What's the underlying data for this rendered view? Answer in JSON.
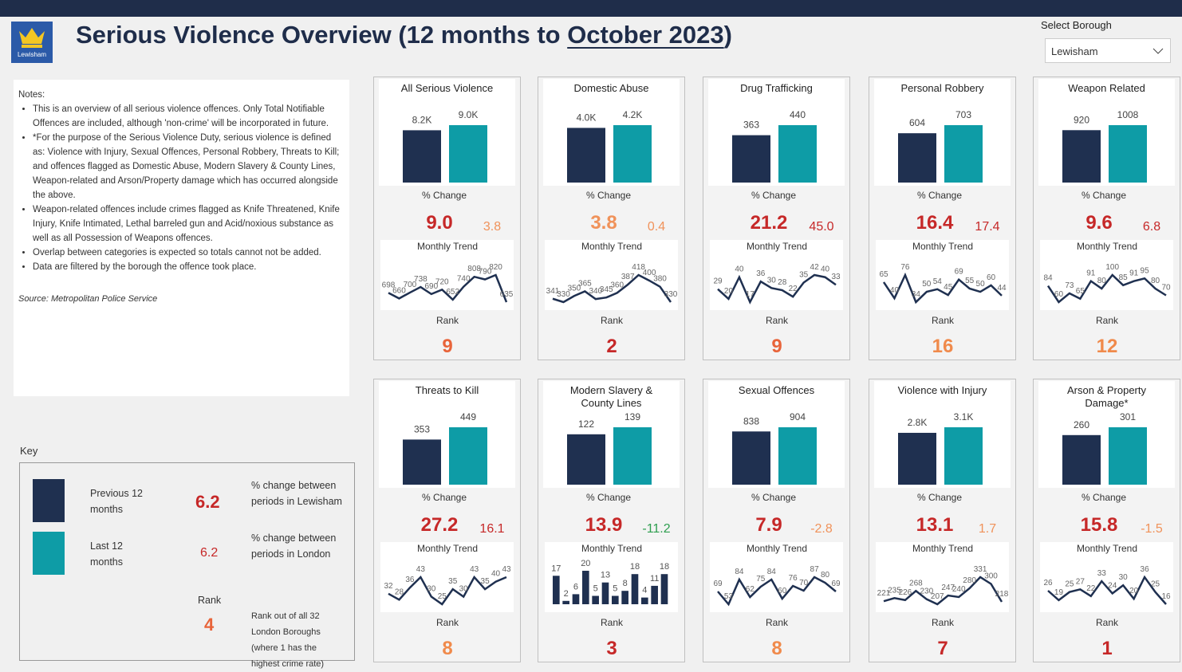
{
  "header": {
    "title_prefix": "Serious Violence Overview (12 months to ",
    "title_month": "October 2023",
    "title_suffix": ")",
    "logo_text": "Lewisham"
  },
  "borough": {
    "label": "Select Borough",
    "value": "Lewisham"
  },
  "notes": {
    "heading": "Notes:",
    "items": [
      "This is an overview of all serious violence offences. Only Total Notifiable Offences are included, although 'non-crime' will be incorporated in future.",
      "*For the purpose of the Serious Violence Duty, serious violence is defined as: Violence with Injury, Sexual Offences, Personal Robbery, Threats to Kill; and offences flagged as Domestic Abuse, Modern Slavery & County Lines, Weapon-related and Arson/Property damage which has occurred alongside the above.",
      "Weapon-related offences include crimes flagged as Knife Threatened, Knife Injury, Knife Intimated, Lethal barreled gun and Acid/noxious substance as well as all Possession of Weapons offences.",
      "Overlap between categories is expected so totals cannot not be added.",
      "Data are filtered by the borough the offence took place."
    ],
    "source": "Source: Metropolitan Police Service"
  },
  "key": {
    "heading": "Key",
    "previous": "Previous 12 months",
    "last": "Last 12 months",
    "previous_color": "#1f3050",
    "last_color": "#0e9ca6",
    "local_value": 6.2,
    "local_text": "% change between periods in Lewisham",
    "london_value": 6.2,
    "london_text": "% change between periods in London",
    "rank_label": "Rank",
    "rank_value": 4,
    "rank_text": "Rank out of all 32 London Boroughs (where 1 has the highest crime rate)"
  },
  "labels": {
    "change": "% Change",
    "trend": "Monthly Trend",
    "rank": "Rank"
  },
  "cards": [
    {
      "title": "All Serious Violence",
      "values": [
        8200,
        9000
      ],
      "value_labels": [
        "8.2K",
        "9.0K"
      ],
      "change": 9.0,
      "change_label": "9.0",
      "london_change": 3.8,
      "change_color": "#c62828",
      "london_color": "#f0925a",
      "trend_type": "line",
      "trend": [
        698,
        660,
        700,
        738,
        690,
        720,
        652,
        740,
        808,
        790,
        820,
        635
      ],
      "rank": 9,
      "rank_color": "#e8643a"
    },
    {
      "title": "Domestic Abuse",
      "values": [
        4000,
        4200
      ],
      "value_labels": [
        "4.0K",
        "4.2K"
      ],
      "change": 3.8,
      "london_change": 0.4,
      "change_color": "#f0925a",
      "london_color": "#f0925a",
      "trend_type": "line",
      "trend": [
        341,
        330,
        350,
        365,
        340,
        345,
        360,
        387,
        418,
        400,
        380,
        330
      ],
      "rank": 2,
      "rank_color": "#c62828"
    },
    {
      "title": "Drug Trafficking",
      "values": [
        363,
        440
      ],
      "change": 21.2,
      "london_change": 45.0,
      "london_change_label": "45.0",
      "change_color": "#c62828",
      "london_color": "#c62828",
      "trend_type": "line",
      "trend": [
        29,
        20,
        40,
        17,
        36,
        30,
        28,
        22,
        35,
        42,
        40,
        33
      ],
      "rank": 9,
      "rank_color": "#e8643a"
    },
    {
      "title": "Personal Robbery",
      "values": [
        604,
        703
      ],
      "change": 16.4,
      "london_change": 17.4,
      "change_color": "#c62828",
      "london_color": "#c62828",
      "trend_type": "line",
      "trend": [
        65,
        40,
        76,
        34,
        50,
        54,
        45,
        69,
        55,
        50,
        60,
        44
      ],
      "rank": 16,
      "rank_color": "#f08a4b"
    },
    {
      "title": "Weapon Related",
      "values": [
        920,
        1008
      ],
      "change": 9.6,
      "london_change": 6.8,
      "change_color": "#c62828",
      "london_color": "#c62828",
      "trend_type": "line",
      "trend": [
        84,
        60,
        73,
        65,
        91,
        80,
        100,
        85,
        91,
        95,
        80,
        70
      ],
      "rank": 12,
      "rank_color": "#f08a4b"
    },
    {
      "title": "Threats to Kill",
      "values": [
        353,
        449
      ],
      "change": 27.2,
      "london_change": 16.1,
      "change_color": "#c62828",
      "london_color": "#c62828",
      "trend_type": "line",
      "trend": [
        32,
        28,
        36,
        43,
        30,
        25,
        35,
        30,
        43,
        35,
        40,
        43
      ],
      "rank": 8,
      "rank_color": "#f08a4b"
    },
    {
      "title": "Modern Slavery & County Lines",
      "values": [
        122,
        139
      ],
      "change": 13.9,
      "london_change": -11.2,
      "change_color": "#c62828",
      "london_color": "#2e9e4f",
      "trend_type": "bar",
      "trend": [
        17,
        2,
        6,
        20,
        5,
        13,
        5,
        8,
        18,
        4,
        11,
        18
      ],
      "rank": 3,
      "rank_color": "#c62828"
    },
    {
      "title": "Sexual Offences",
      "values": [
        838,
        904
      ],
      "change": 7.9,
      "london_change": -2.8,
      "change_color": "#c62828",
      "london_color": "#f0925a",
      "trend_type": "line",
      "trend": [
        69,
        53,
        84,
        62,
        75,
        84,
        60,
        76,
        70,
        87,
        80,
        69
      ],
      "rank": 8,
      "rank_color": "#f08a4b"
    },
    {
      "title": "Violence with Injury",
      "values": [
        2800,
        3100
      ],
      "value_labels": [
        "2.8K",
        "3.1K"
      ],
      "change": 13.1,
      "london_change": 1.7,
      "change_color": "#c62828",
      "london_color": "#f0925a",
      "trend_type": "line",
      "trend": [
        221,
        235,
        226,
        268,
        230,
        207,
        247,
        240,
        280,
        331,
        300,
        218
      ],
      "rank": 7,
      "rank_color": "#c62828"
    },
    {
      "title": "Arson & Property Damage*",
      "values": [
        260,
        301
      ],
      "change": 15.8,
      "london_change": -1.5,
      "change_color": "#c62828",
      "london_color": "#f0925a",
      "trend_type": "line",
      "trend": [
        26,
        19,
        25,
        27,
        22,
        33,
        24,
        30,
        20,
        36,
        25,
        16
      ],
      "rank": 1,
      "rank_color": "#c62828"
    }
  ]
}
